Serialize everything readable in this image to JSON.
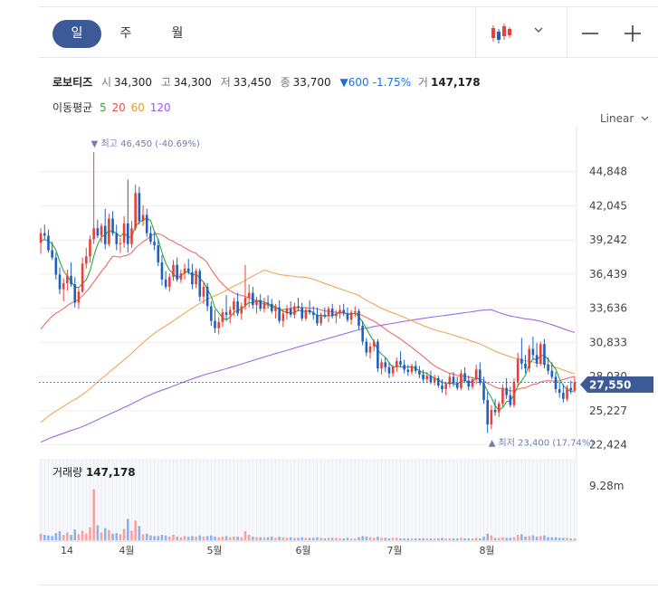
{
  "tabs": [
    {
      "label": "일",
      "active": true
    },
    {
      "label": "주",
      "active": false
    },
    {
      "label": "월",
      "active": false
    }
  ],
  "stock": {
    "name": "로보티즈",
    "open_label": "시",
    "open": "34,300",
    "high_label": "고",
    "high": "34,300",
    "low_label": "저",
    "low": "33,450",
    "close_label": "종",
    "close": "33,700",
    "change": "▼600",
    "change_pct": "-1.75%",
    "volume_label": "거",
    "volume": "147,178"
  },
  "moving_average": {
    "label": "이동평균",
    "periods": [
      {
        "value": "5",
        "color": "#2aa836"
      },
      {
        "value": "20",
        "color": "#e8504c"
      },
      {
        "value": "60",
        "color": "#e89a3c"
      },
      {
        "value": "120",
        "color": "#9b5de5"
      }
    ]
  },
  "scale_label": "Linear",
  "colors": {
    "up": "#e8403a",
    "down": "#1f5fbf",
    "accent": "#3d5a98",
    "ma5": "#2aa836",
    "ma20": "#ef6b6b",
    "ma60": "#f0a656",
    "ma120": "#a06ae6"
  },
  "chart_data": {
    "type": "candlestick",
    "y_ticks": [
      "44,848",
      "42,045",
      "39,242",
      "36,439",
      "33,636",
      "30,833",
      "28,030",
      "25,227",
      "22,424"
    ],
    "ylim": [
      21800,
      47800
    ],
    "x_ticks": [
      "14",
      "4월",
      "5월",
      "6월",
      "7월",
      "8월"
    ],
    "current_price": "27,550",
    "high_annotation": "▼ 최고 46,450 (-40.69%)",
    "low_annotation": "▲ 최저 23,400 (17.74%)",
    "volume_title": "거래량",
    "volume_value": "147,178",
    "volume_axis_label": "9.28m",
    "candles": [
      [
        39000,
        40200,
        38100,
        39800
      ],
      [
        39800,
        40500,
        39300,
        39600
      ],
      [
        39600,
        40100,
        38200,
        38400
      ],
      [
        38400,
        39100,
        37600,
        37800
      ],
      [
        37800,
        38200,
        36000,
        36400
      ],
      [
        36400,
        37000,
        34800,
        35200
      ],
      [
        35200,
        36100,
        34200,
        35700
      ],
      [
        35700,
        36800,
        35100,
        36300
      ],
      [
        36300,
        37400,
        35400,
        35600
      ],
      [
        35600,
        36200,
        33700,
        34100
      ],
      [
        34100,
        35300,
        33600,
        35000
      ],
      [
        35000,
        37800,
        34900,
        37300
      ],
      [
        37300,
        38600,
        36900,
        37900
      ],
      [
        37900,
        39600,
        37400,
        39300
      ],
      [
        39300,
        46450,
        38900,
        40200
      ],
      [
        40200,
        40900,
        39400,
        39600
      ],
      [
        39600,
        40600,
        39000,
        40400
      ],
      [
        40400,
        41800,
        38500,
        38900
      ],
      [
        38900,
        41400,
        38700,
        41000
      ],
      [
        41000,
        41600,
        39600,
        39800
      ],
      [
        39800,
        40500,
        38400,
        38900
      ],
      [
        38900,
        39400,
        38200,
        39000
      ],
      [
        39000,
        41200,
        38600,
        40600
      ],
      [
        40600,
        44200,
        38200,
        38900
      ],
      [
        38900,
        40800,
        38600,
        40200
      ],
      [
        40200,
        43800,
        40000,
        43100
      ],
      [
        43100,
        43600,
        40500,
        40800
      ],
      [
        40800,
        42100,
        40400,
        41300
      ],
      [
        41300,
        41800,
        39500,
        39800
      ],
      [
        39800,
        40400,
        38900,
        39100
      ],
      [
        39100,
        39900,
        38400,
        38800
      ],
      [
        38800,
        39300,
        37100,
        37400
      ],
      [
        37400,
        38000,
        35500,
        36000
      ],
      [
        36000,
        36700,
        35200,
        35400
      ],
      [
        35400,
        36500,
        35000,
        36200
      ],
      [
        36200,
        37600,
        35900,
        37200
      ],
      [
        37200,
        37800,
        35800,
        36000
      ],
      [
        36000,
        36800,
        35700,
        36500
      ],
      [
        36500,
        37300,
        36000,
        36900
      ],
      [
        36900,
        37700,
        36400,
        36600
      ],
      [
        36600,
        37300,
        35200,
        35600
      ],
      [
        35600,
        36900,
        35300,
        36700
      ],
      [
        36700,
        36900,
        34200,
        34600
      ],
      [
        34600,
        35800,
        34000,
        35400
      ],
      [
        35400,
        35700,
        33400,
        33800
      ],
      [
        33800,
        34200,
        32200,
        32600
      ],
      [
        32600,
        33500,
        31600,
        32000
      ],
      [
        32000,
        32900,
        31500,
        32500
      ],
      [
        32500,
        33600,
        32100,
        33300
      ],
      [
        33300,
        34700,
        32600,
        33100
      ],
      [
        33100,
        33800,
        32400,
        33500
      ],
      [
        33500,
        34500,
        33000,
        34200
      ],
      [
        34200,
        34900,
        33000,
        33200
      ],
      [
        33200,
        34100,
        32700,
        33800
      ],
      [
        33800,
        37200,
        33500,
        34500
      ],
      [
        34500,
        35600,
        33700,
        34900
      ],
      [
        34900,
        35400,
        33600,
        33900
      ],
      [
        33900,
        34600,
        33200,
        34300
      ],
      [
        34300,
        34800,
        33400,
        33600
      ],
      [
        33600,
        34500,
        33300,
        34100
      ],
      [
        34100,
        34700,
        33600,
        34000
      ],
      [
        34000,
        34400,
        33200,
        33400
      ],
      [
        33400,
        34000,
        32800,
        33700
      ],
      [
        33700,
        34300,
        32400,
        32600
      ],
      [
        32600,
        33500,
        32100,
        33200
      ],
      [
        33200,
        33900,
        32700,
        33600
      ],
      [
        33600,
        34200,
        32900,
        33100
      ],
      [
        33100,
        34100,
        32800,
        33800
      ],
      [
        33800,
        34500,
        33400,
        33700
      ],
      [
        33700,
        34100,
        32600,
        32800
      ],
      [
        32800,
        33700,
        32600,
        33500
      ],
      [
        33500,
        34300,
        33100,
        33300
      ],
      [
        33300,
        33800,
        32700,
        33100
      ],
      [
        33100,
        33700,
        32200,
        32400
      ],
      [
        32400,
        33300,
        32200,
        33100
      ],
      [
        33100,
        33700,
        32800,
        33000
      ],
      [
        33000,
        33800,
        32500,
        33600
      ],
      [
        33600,
        34000,
        32800,
        33000
      ],
      [
        33000,
        33500,
        32400,
        33200
      ],
      [
        33200,
        33900,
        32800,
        33500
      ],
      [
        33500,
        34000,
        33000,
        33200
      ],
      [
        33200,
        33700,
        32500,
        32700
      ],
      [
        32700,
        33500,
        32300,
        33300
      ],
      [
        33300,
        33800,
        32900,
        33400
      ],
      [
        33400,
        33600,
        31900,
        32200
      ],
      [
        32200,
        32600,
        30600,
        30900
      ],
      [
        30900,
        31200,
        29700,
        30000
      ],
      [
        30000,
        30800,
        29500,
        30500
      ],
      [
        30500,
        31100,
        30100,
        30900
      ],
      [
        30900,
        31100,
        28400,
        28700
      ],
      [
        28700,
        29500,
        28200,
        29200
      ],
      [
        29200,
        29600,
        28400,
        28800
      ],
      [
        28800,
        29200,
        27900,
        28300
      ],
      [
        28300,
        29000,
        28000,
        28800
      ],
      [
        28800,
        29600,
        28400,
        29300
      ],
      [
        29300,
        30100,
        28800,
        29000
      ],
      [
        29000,
        29400,
        28300,
        28600
      ],
      [
        28600,
        29000,
        28100,
        28400
      ],
      [
        28400,
        29100,
        28200,
        28900
      ],
      [
        28900,
        29300,
        28300,
        28500
      ],
      [
        28500,
        28900,
        27900,
        28200
      ],
      [
        28200,
        28600,
        27600,
        27800
      ],
      [
        27800,
        28400,
        27500,
        28100
      ],
      [
        28100,
        28500,
        27400,
        27600
      ],
      [
        27600,
        28200,
        27300,
        27900
      ],
      [
        27900,
        28100,
        27100,
        27300
      ],
      [
        27300,
        27800,
        26700,
        27000
      ],
      [
        27000,
        27600,
        26500,
        27400
      ],
      [
        27400,
        28300,
        27100,
        28000
      ],
      [
        28000,
        28400,
        27200,
        27500
      ],
      [
        27500,
        28000,
        26900,
        27100
      ],
      [
        27100,
        28600,
        26900,
        28300
      ],
      [
        28300,
        28800,
        27500,
        27700
      ],
      [
        27700,
        28100,
        26900,
        27200
      ],
      [
        27200,
        28000,
        27000,
        27800
      ],
      [
        27800,
        29000,
        27400,
        28600
      ],
      [
        28600,
        29200,
        27300,
        27500
      ],
      [
        27500,
        28000,
        25800,
        26100
      ],
      [
        26100,
        26800,
        23400,
        24100
      ],
      [
        24100,
        25700,
        23700,
        25300
      ],
      [
        25300,
        26200,
        24800,
        25100
      ],
      [
        25100,
        26000,
        24700,
        25800
      ],
      [
        25800,
        27400,
        25500,
        27100
      ],
      [
        27100,
        27900,
        26200,
        26500
      ],
      [
        26500,
        27200,
        25500,
        25700
      ],
      [
        25700,
        27900,
        25500,
        27600
      ],
      [
        27600,
        30000,
        27200,
        29500
      ],
      [
        29500,
        31200,
        28600,
        29100
      ],
      [
        29100,
        29800,
        28300,
        28700
      ],
      [
        28700,
        30600,
        28400,
        30300
      ],
      [
        30300,
        31300,
        29400,
        29800
      ],
      [
        29800,
        30800,
        28800,
        29100
      ],
      [
        29100,
        30900,
        28900,
        30700
      ],
      [
        30700,
        31100,
        28700,
        29000
      ],
      [
        29000,
        29600,
        28200,
        28500
      ],
      [
        28500,
        29200,
        27800,
        28000
      ],
      [
        28000,
        28400,
        26700,
        27000
      ],
      [
        27000,
        27600,
        26300,
        26700
      ],
      [
        26700,
        27400,
        25900,
        26200
      ],
      [
        26200,
        27300,
        26000,
        27100
      ],
      [
        27100,
        27700,
        26600,
        26900
      ],
      [
        26900,
        28000,
        26700,
        27550
      ]
    ],
    "volumes": [
      1.1,
      0.9,
      0.8,
      0.7,
      1.2,
      1.5,
      0.9,
      1.3,
      0.9,
      1.8,
      1.0,
      1.6,
      1.1,
      2.2,
      8.6,
      2.5,
      1.3,
      2.0,
      1.7,
      1.1,
      1.2,
      1.0,
      1.9,
      3.6,
      1.6,
      3.3,
      2.4,
      1.0,
      1.1,
      0.8,
      0.7,
      0.7,
      0.9,
      0.8,
      0.6,
      0.9,
      0.6,
      0.5,
      0.7,
      0.6,
      0.7,
      0.6,
      0.8,
      0.6,
      0.7,
      0.8,
      0.6,
      0.5,
      0.6,
      0.7,
      0.5,
      0.6,
      0.6,
      0.5,
      1.5,
      0.9,
      0.6,
      0.5,
      0.5,
      0.5,
      0.5,
      0.6,
      0.4,
      0.6,
      0.5,
      0.4,
      0.5,
      0.4,
      0.4,
      0.5,
      0.4,
      0.4,
      0.4,
      0.5,
      0.4,
      0.3,
      0.4,
      0.4,
      0.4,
      0.3,
      0.3,
      0.4,
      0.3,
      0.3,
      0.5,
      0.7,
      0.6,
      0.5,
      0.4,
      0.6,
      0.4,
      0.4,
      0.3,
      0.4,
      0.4,
      0.3,
      0.3,
      0.3,
      0.3,
      0.3,
      0.3,
      0.3,
      0.3,
      0.3,
      0.3,
      0.3,
      0.4,
      0.3,
      0.3,
      0.3,
      0.3,
      0.4,
      0.3,
      0.3,
      0.3,
      0.4,
      0.3,
      0.6,
      1.1,
      0.8,
      0.4,
      0.4,
      0.5,
      0.4,
      0.4,
      0.5,
      0.9,
      1.0,
      0.6,
      0.7,
      0.8,
      0.6,
      0.7,
      0.8,
      0.5,
      0.5,
      0.5,
      0.4,
      0.4,
      0.4,
      0.3,
      0.3
    ],
    "volume_max": 9.28
  }
}
